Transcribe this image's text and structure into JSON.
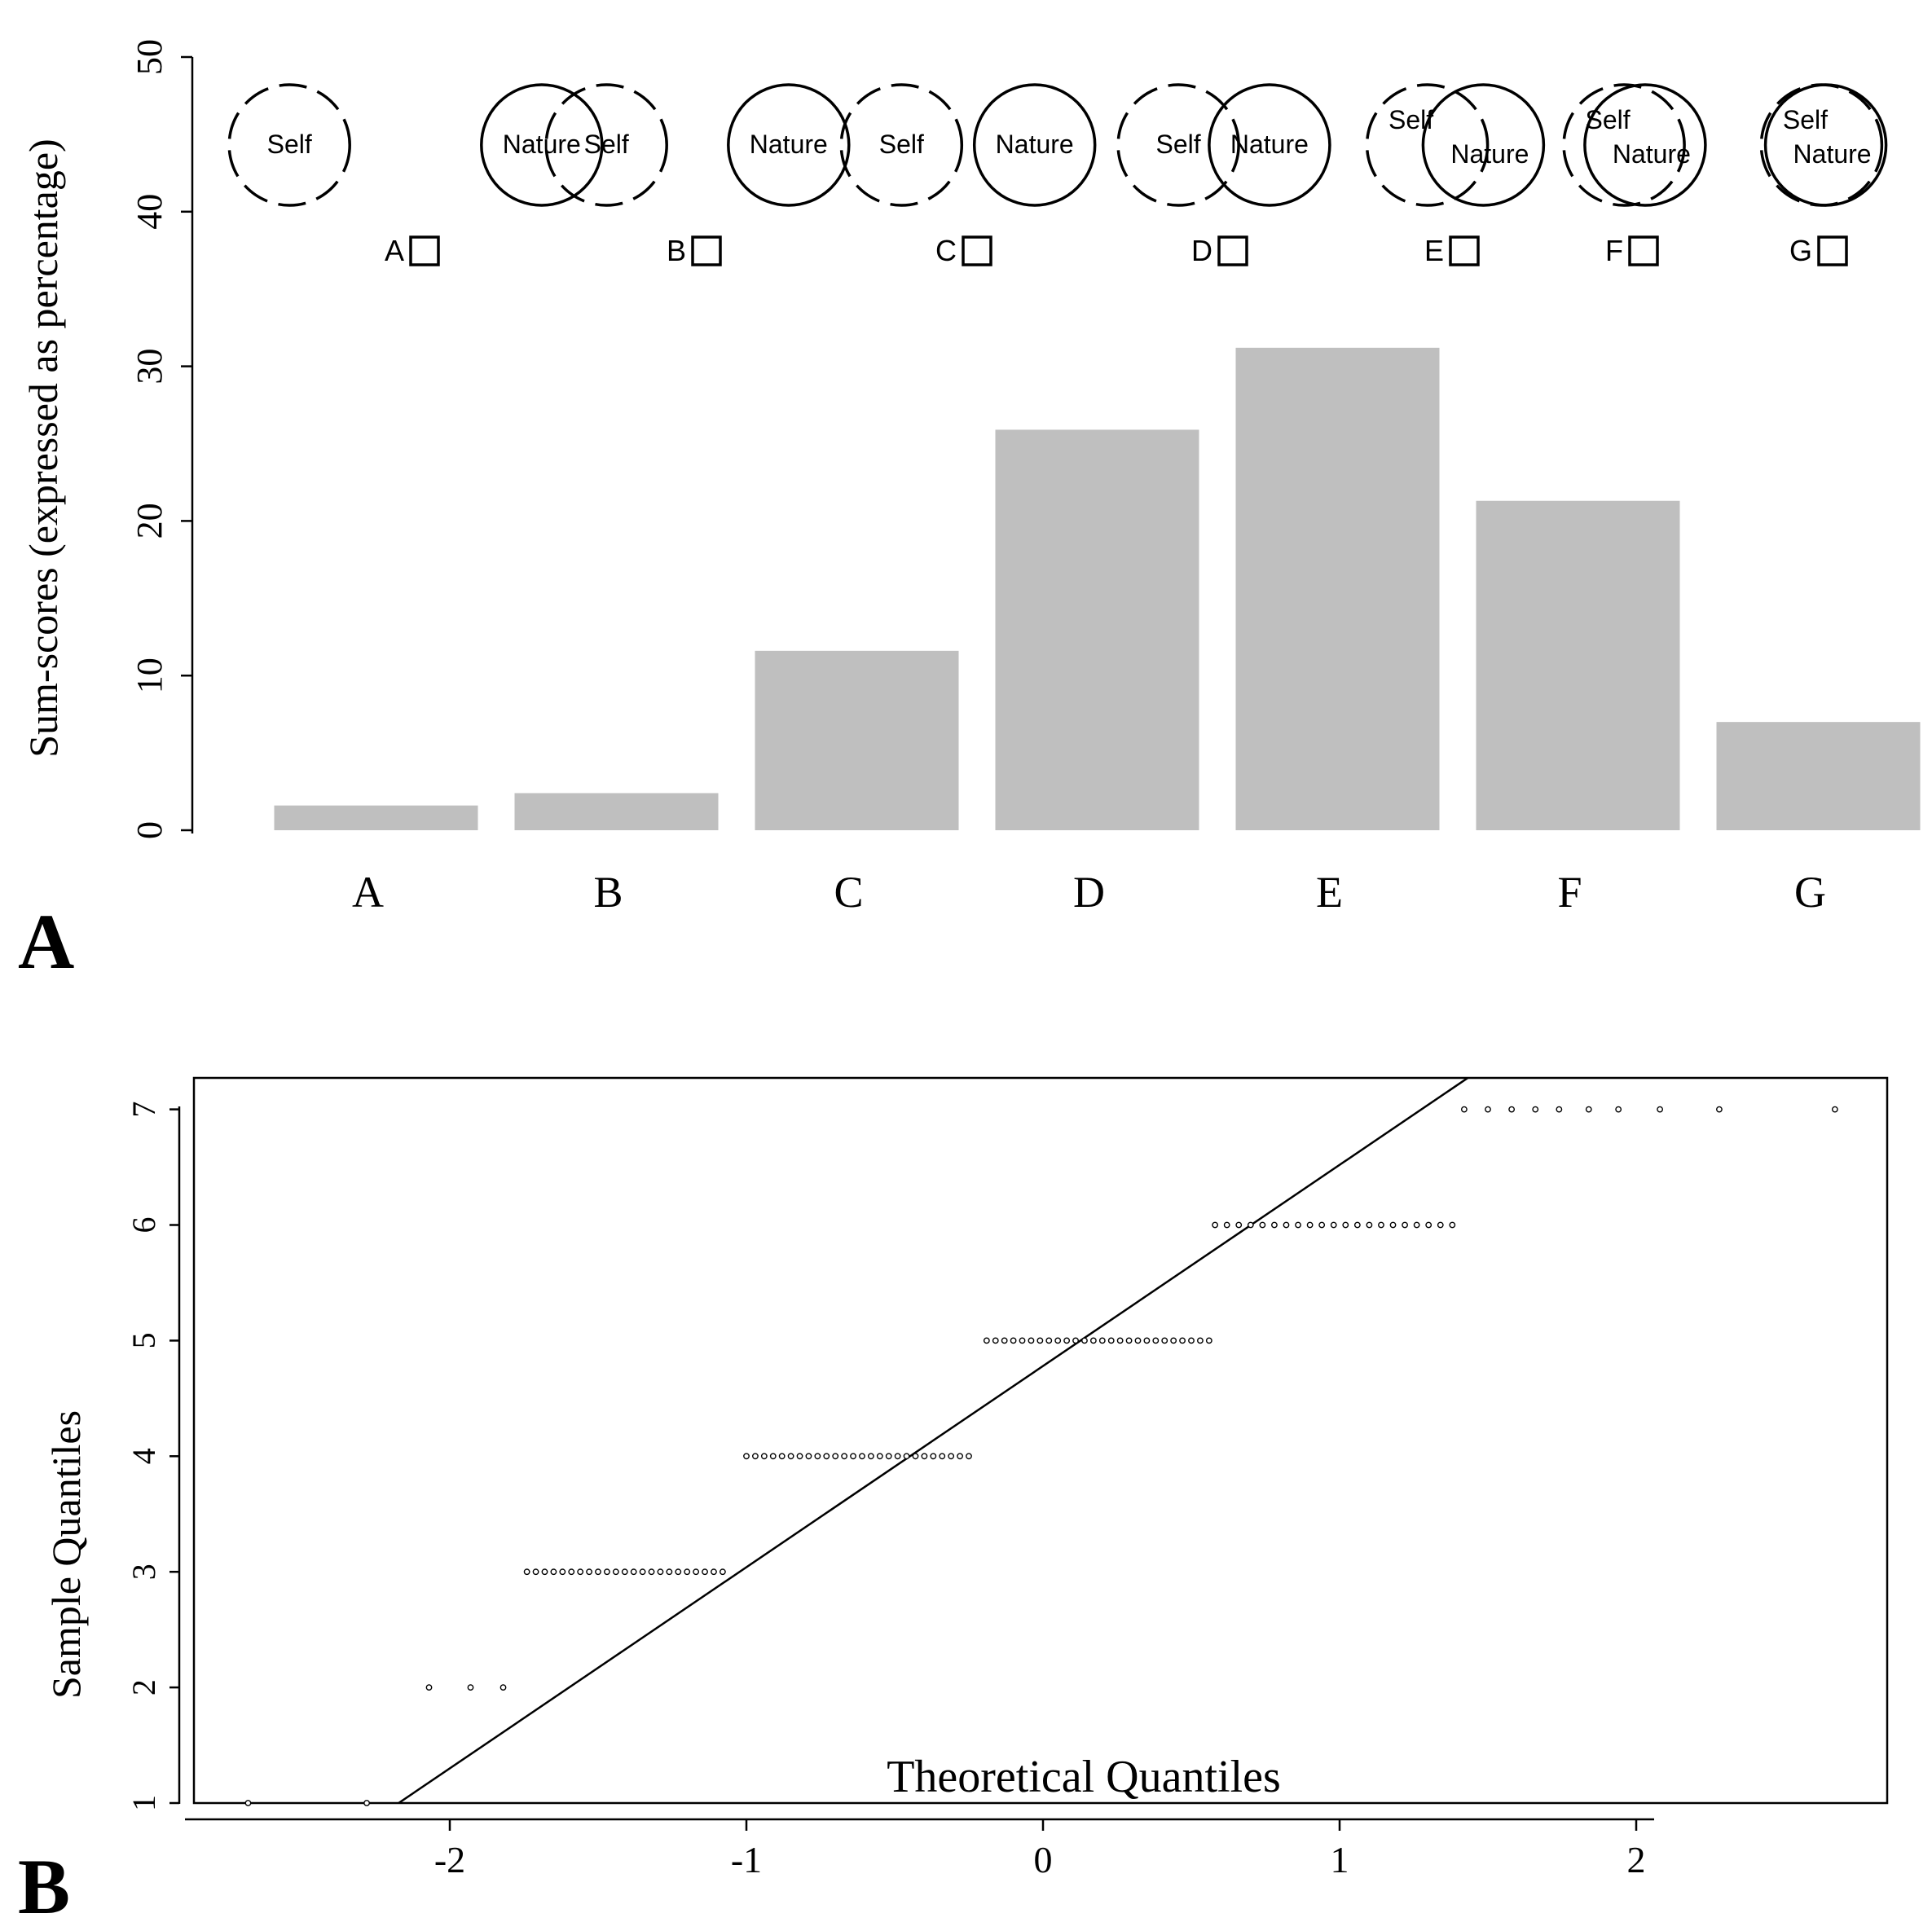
{
  "panels": {
    "a_label": "A",
    "b_label": "B"
  },
  "venn": {
    "self_label": "Self",
    "nature_label": "Nature",
    "options": [
      "A",
      "B",
      "C",
      "D",
      "E",
      "F",
      "G"
    ]
  },
  "chart_data": [
    {
      "type": "bar",
      "title": "",
      "xlabel": "",
      "ylabel": "Sum-scores (expressed as percentage)",
      "categories": [
        "A",
        "B",
        "C",
        "D",
        "E",
        "F",
        "G"
      ],
      "values": [
        1.6,
        2.4,
        11.6,
        25.9,
        31.2,
        21.3,
        7.0
      ],
      "ylim": [
        0,
        50
      ],
      "yticks": [
        0,
        10,
        20,
        30,
        40,
        50
      ],
      "grid": false
    },
    {
      "type": "scatter",
      "title": "",
      "xlabel": "Theoretical Quantiles",
      "ylabel": "Sample Quantiles",
      "xlim": [
        -2.9,
        2.9
      ],
      "ylim": [
        0.85,
        7.25
      ],
      "xticks": [
        -2,
        -1,
        0,
        1,
        2
      ],
      "yticks": [
        1,
        2,
        3,
        4,
        5,
        6,
        7
      ],
      "grid": false,
      "reference_line": {
        "intercept": 4.78,
        "slope": 1.74
      },
      "points": [
        {
          "y": 1,
          "x": [
            -2.68,
            -2.28
          ]
        },
        {
          "y": 2,
          "x": [
            -2.07,
            -1.93,
            -1.82
          ]
        },
        {
          "y": 3,
          "x": [
            -1.74,
            -1.71,
            -1.68,
            -1.65,
            -1.62,
            -1.59,
            -1.56,
            -1.53,
            -1.5,
            -1.47,
            -1.44,
            -1.41,
            -1.38,
            -1.35,
            -1.32,
            -1.29,
            -1.26,
            -1.23,
            -1.2,
            -1.17,
            -1.14,
            -1.11,
            -1.08
          ]
        },
        {
          "y": 4,
          "x": [
            -1.0,
            -0.97,
            -0.94,
            -0.91,
            -0.88,
            -0.85,
            -0.82,
            -0.79,
            -0.76,
            -0.73,
            -0.7,
            -0.67,
            -0.64,
            -0.61,
            -0.58,
            -0.55,
            -0.52,
            -0.49,
            -0.46,
            -0.43,
            -0.4,
            -0.37,
            -0.34,
            -0.31,
            -0.28,
            -0.25
          ]
        },
        {
          "y": 5,
          "x": [
            -0.19,
            -0.16,
            -0.13,
            -0.1,
            -0.07,
            -0.04,
            -0.01,
            0.02,
            0.05,
            0.08,
            0.11,
            0.14,
            0.17,
            0.2,
            0.23,
            0.26,
            0.29,
            0.32,
            0.35,
            0.38,
            0.41,
            0.44,
            0.47,
            0.5,
            0.53,
            0.56
          ]
        },
        {
          "y": 6,
          "x": [
            0.58,
            0.62,
            0.66,
            0.7,
            0.74,
            0.78,
            0.82,
            0.86,
            0.9,
            0.94,
            0.98,
            1.02,
            1.06,
            1.1,
            1.14,
            1.18,
            1.22,
            1.26,
            1.3,
            1.34,
            1.38
          ]
        },
        {
          "y": 7,
          "x": [
            1.42,
            1.5,
            1.58,
            1.66,
            1.74,
            1.84,
            1.94,
            2.08,
            2.28,
            2.67
          ]
        }
      ]
    }
  ]
}
